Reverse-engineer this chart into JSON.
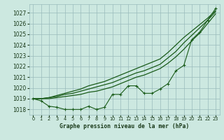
{
  "bg_color": "#cce8e0",
  "grid_color": "#99bbbb",
  "line_color": "#1a5c1a",
  "text_color": "#1a3a1a",
  "xlabel": "Graphe pression niveau de la mer (hPa)",
  "ylim": [
    1017.5,
    1027.8
  ],
  "xlim": [
    -0.5,
    23.5
  ],
  "yticks": [
    1018,
    1019,
    1020,
    1021,
    1022,
    1023,
    1024,
    1025,
    1026,
    1027
  ],
  "xticks": [
    0,
    1,
    2,
    3,
    4,
    5,
    6,
    7,
    8,
    9,
    10,
    11,
    12,
    13,
    14,
    15,
    16,
    17,
    18,
    19,
    20,
    21,
    22,
    23
  ],
  "series_wiggly": [
    1019.0,
    1018.8,
    1018.3,
    1018.2,
    1018.0,
    1018.0,
    1018.0,
    1018.3,
    1018.0,
    1018.2,
    1019.4,
    1019.4,
    1020.2,
    1020.2,
    1019.5,
    1019.5,
    1019.9,
    1020.4,
    1021.6,
    1022.1,
    1024.5,
    1025.2,
    1026.3,
    1027.4
  ],
  "series1": [
    1019.0,
    1019.0,
    1019.0,
    1019.1,
    1019.2,
    1019.3,
    1019.4,
    1019.6,
    1019.7,
    1019.9,
    1020.1,
    1020.4,
    1020.7,
    1021.0,
    1021.2,
    1021.5,
    1021.8,
    1022.3,
    1022.9,
    1023.6,
    1024.4,
    1025.1,
    1026.0,
    1026.9
  ],
  "series2": [
    1019.0,
    1019.0,
    1019.1,
    1019.2,
    1019.4,
    1019.5,
    1019.7,
    1019.9,
    1020.1,
    1020.3,
    1020.5,
    1020.8,
    1021.1,
    1021.4,
    1021.6,
    1021.9,
    1022.2,
    1022.8,
    1023.4,
    1024.2,
    1024.9,
    1025.6,
    1026.3,
    1027.1
  ],
  "series3": [
    1019.0,
    1019.0,
    1019.1,
    1019.3,
    1019.5,
    1019.7,
    1019.9,
    1020.2,
    1020.4,
    1020.6,
    1020.9,
    1021.2,
    1021.5,
    1021.8,
    1022.1,
    1022.4,
    1022.7,
    1023.3,
    1024.0,
    1024.7,
    1025.3,
    1025.9,
    1026.5,
    1027.2
  ]
}
